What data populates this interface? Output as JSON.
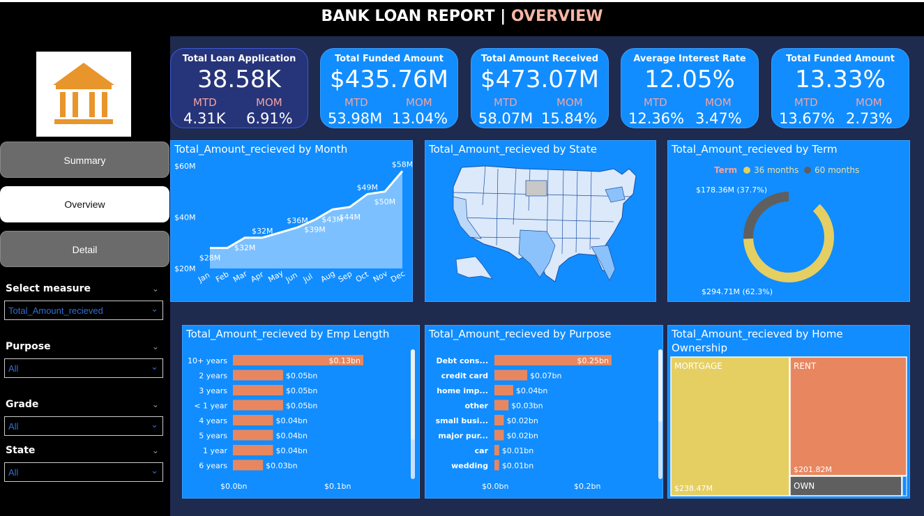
{
  "header": {
    "title_main": "BANK LOAN REPORT | ",
    "title_accent": "OVERVIEW"
  },
  "nav": {
    "summary": "Summary",
    "overview": "Overview",
    "detail": "Detail"
  },
  "filters": {
    "measure": {
      "label": "Select measure",
      "value": "Total_Amount_recieved"
    },
    "purpose": {
      "label": "Purpose",
      "value": "All"
    },
    "grade": {
      "label": "Grade",
      "value": "All"
    },
    "state": {
      "label": "State",
      "value": "All"
    }
  },
  "kpis": [
    {
      "title": "Total Loan Application",
      "value": "38.58K",
      "mtd_label": "MTD",
      "mom_label": "MOM",
      "mtd": "4.31K",
      "mom": "6.91%"
    },
    {
      "title": "Total Funded Amount",
      "value": "$435.76M",
      "mtd_label": "MTD",
      "mom_label": "MOM",
      "mtd": "53.98M",
      "mom": "13.04%"
    },
    {
      "title": "Total  Amount Received",
      "value": "$473.07M",
      "mtd_label": "MTD",
      "mom_label": "MOM",
      "mtd": "58.07M",
      "mom": "15.84%"
    },
    {
      "title": "Average Interest Rate",
      "value": "12.05%",
      "mtd_label": "MTD",
      "mom_label": "MOM",
      "mtd": "12.36%",
      "mom": "3.47%"
    },
    {
      "title": "Total Funded Amount",
      "value": "13.33%",
      "mtd_label": "MTD",
      "mom_label": "MOM",
      "mtd": "13.67%",
      "mom": "2.73%"
    }
  ],
  "panels": {
    "month": "Total_Amount_recieved by Month",
    "state": "Total_Amount_recieved by State",
    "term": "Total_Amount_recieved by Term",
    "emp": "Total_Amount_recieved by Emp Length",
    "purpose": "Total_Amount_recieved by Purpose",
    "home": "Total_Amount_recieved by Home Ownership"
  },
  "colors": {
    "bar": "#e8875f",
    "blue": "#118dff",
    "yellow": "#e5cf63",
    "grey": "#5f5f5f",
    "area": "#7cc0ff"
  },
  "chart_data": [
    {
      "type": "area",
      "title": "Total_Amount_recieved by Month",
      "categories": [
        "Jan",
        "Feb",
        "Mar",
        "Apr",
        "May",
        "Jun",
        "Jul",
        "Aug",
        "Sep",
        "Oct",
        "Nov",
        "Dec"
      ],
      "values": [
        28,
        28,
        32,
        32,
        34,
        36,
        39,
        43,
        44,
        49,
        50,
        58
      ],
      "value_labels": [
        "$28M",
        "",
        "$32M",
        "$32M",
        "",
        "$36M",
        "$39M",
        "$43M",
        "$44M",
        "$49M",
        "$50M",
        "$58M"
      ],
      "y_ticks": [
        "$20M",
        "$40M",
        "$60M"
      ],
      "ylim": [
        20,
        60
      ]
    },
    {
      "type": "pie",
      "title": "Total_Amount_recieved by Term",
      "legend_title": "Term",
      "labels": [
        "36 months",
        "60 months"
      ],
      "values": [
        294.71,
        178.36
      ],
      "data_labels": [
        "$294.71M (62.3%)",
        "$178.36M (37.7%)"
      ]
    },
    {
      "type": "bar",
      "title": "Total_Amount_recieved by Emp Length",
      "categories": [
        "10+ years",
        "2 years",
        "3 years",
        "< 1 year",
        "4 years",
        "5 years",
        "1 year",
        "6 years"
      ],
      "values": [
        0.13,
        0.05,
        0.05,
        0.05,
        0.04,
        0.04,
        0.04,
        0.03
      ],
      "value_labels": [
        "$0.13bn",
        "$0.05bn",
        "$0.05bn",
        "$0.05bn",
        "$0.04bn",
        "$0.04bn",
        "$0.04bn",
        "$0.03bn"
      ],
      "x_ticks": [
        "$0.0bn",
        "$0.1bn"
      ]
    },
    {
      "type": "bar",
      "title": "Total_Amount_recieved by Purpose",
      "categories": [
        "Debt cons...",
        "credit card",
        "home imp...",
        "other",
        "small busi...",
        "major pur...",
        "car",
        "wedding"
      ],
      "values": [
        0.25,
        0.07,
        0.04,
        0.03,
        0.02,
        0.02,
        0.01,
        0.01
      ],
      "value_labels": [
        "$0.25bn",
        "$0.07bn",
        "$0.04bn",
        "$0.03bn",
        "$0.02bn",
        "$0.02bn",
        "$0.01bn",
        "$0.01bn"
      ],
      "x_ticks": [
        "$0.0bn",
        "$0.2bn"
      ]
    },
    {
      "type": "heatmap",
      "title": "Total_Amount_recieved by Home Ownership",
      "labels": [
        "MORTGAGE",
        "RENT",
        "OWN"
      ],
      "value_labels": [
        "$238.47M",
        "$201.82M",
        ""
      ]
    }
  ]
}
